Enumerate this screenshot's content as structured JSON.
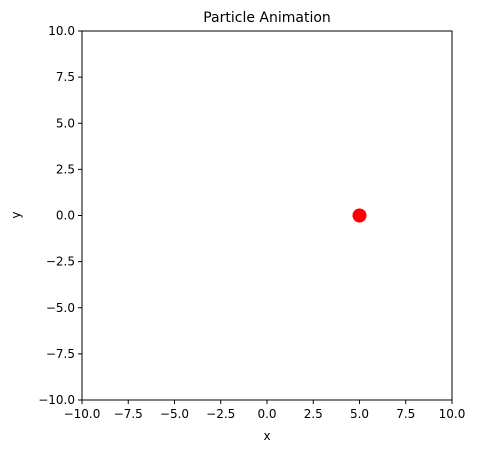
{
  "chart_data": {
    "type": "scatter",
    "title": "Particle Animation",
    "xlabel": "x",
    "ylabel": "y",
    "xlim": [
      -10,
      10
    ],
    "ylim": [
      -10,
      10
    ],
    "x_ticks": [
      -10.0,
      -7.5,
      -5.0,
      -2.5,
      0.0,
      2.5,
      5.0,
      7.5,
      10.0
    ],
    "y_ticks": [
      -10.0,
      -7.5,
      -5.0,
      -2.5,
      0.0,
      2.5,
      5.0,
      7.5,
      10.0
    ],
    "x_tick_labels": [
      "−10.0",
      "−7.5",
      "−5.0",
      "−2.5",
      "0.0",
      "2.5",
      "5.0",
      "7.5",
      "10.0"
    ],
    "y_tick_labels": [
      "−10.0",
      "−7.5",
      "−5.0",
      "−2.5",
      "0.0",
      "2.5",
      "5.0",
      "7.5",
      "10.0"
    ],
    "grid": false,
    "points": [
      {
        "x": 5.0,
        "y": 0.0,
        "color": "#ff0000"
      }
    ]
  }
}
